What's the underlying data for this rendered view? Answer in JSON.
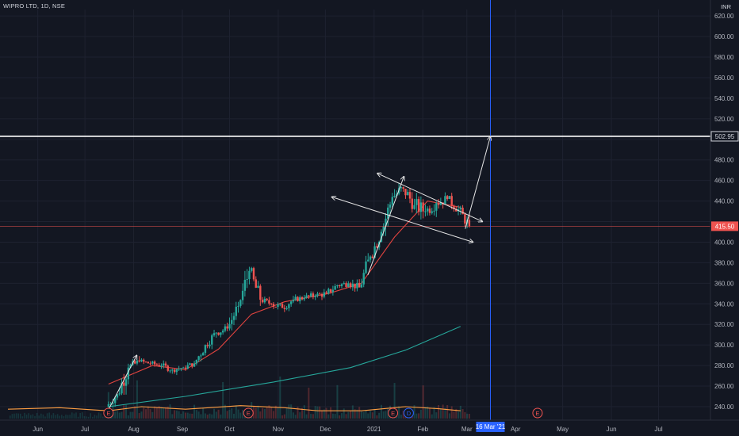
{
  "header": {
    "title": "WIPRO LTD, 1D, NSE",
    "currency": "INR"
  },
  "colors": {
    "background": "#131722",
    "grid": "#1e2230",
    "up": "#26a69a",
    "down": "#ef5350",
    "sma_short": "#e0433f",
    "sma_long": "#26a69a",
    "volume_ma": "#ff9f43",
    "crosshair": "#2962ff",
    "resistance": "#ffffff",
    "price_line": "#ef5350"
  },
  "price_scale": {
    "labels": [
      "620.00",
      "600.00",
      "580.00",
      "560.00",
      "540.00",
      "520.00",
      "480.00",
      "460.00",
      "440.00",
      "400.00",
      "380.00",
      "360.00",
      "340.00",
      "320.00",
      "300.00",
      "280.00",
      "260.00",
      "240.00"
    ]
  },
  "time_scale": {
    "labels": [
      "Jun",
      "Jul",
      "Aug",
      "Sep",
      "Oct",
      "Nov",
      "Dec",
      "2021",
      "Feb",
      "Mar",
      "Apr",
      "May",
      "Jun",
      "Jul"
    ]
  },
  "price_tags": {
    "resistance": "502.95",
    "last_price": "415.50",
    "crosshair_date": "16 Mar '21"
  },
  "event_badges": [
    {
      "label": "E",
      "kind": "earnings"
    },
    {
      "label": "E",
      "kind": "earnings"
    },
    {
      "label": "E",
      "kind": "earnings"
    },
    {
      "label": "D",
      "kind": "dividend"
    },
    {
      "label": "E",
      "kind": "earnings"
    }
  ],
  "chart_data": {
    "type": "candlestick",
    "title": "WIPRO LTD, 1D, NSE",
    "currency": "INR",
    "ylim": [
      230,
      630
    ],
    "x_range": [
      "2020-05-13",
      "2021-07-31"
    ],
    "candles_weekly_approx": [
      {
        "date": "2020-07-16",
        "open": 240,
        "high": 255,
        "low": 236,
        "close": 252
      },
      {
        "date": "2020-07-23",
        "open": 252,
        "high": 286,
        "low": 250,
        "close": 278
      },
      {
        "date": "2020-07-30",
        "open": 278,
        "high": 292,
        "low": 274,
        "close": 284
      },
      {
        "date": "2020-08-06",
        "open": 284,
        "high": 290,
        "low": 278,
        "close": 282
      },
      {
        "date": "2020-08-13",
        "open": 282,
        "high": 287,
        "low": 276,
        "close": 280
      },
      {
        "date": "2020-08-20",
        "open": 280,
        "high": 285,
        "low": 272,
        "close": 276
      },
      {
        "date": "2020-08-27",
        "open": 276,
        "high": 282,
        "low": 270,
        "close": 278
      },
      {
        "date": "2020-09-03",
        "open": 278,
        "high": 286,
        "low": 274,
        "close": 282
      },
      {
        "date": "2020-09-10",
        "open": 282,
        "high": 305,
        "low": 280,
        "close": 300
      },
      {
        "date": "2020-09-17",
        "open": 300,
        "high": 316,
        "low": 296,
        "close": 312
      },
      {
        "date": "2020-09-24",
        "open": 312,
        "high": 322,
        "low": 306,
        "close": 316
      },
      {
        "date": "2020-10-01",
        "open": 316,
        "high": 342,
        "low": 314,
        "close": 338
      },
      {
        "date": "2020-10-08",
        "open": 338,
        "high": 380,
        "low": 336,
        "close": 372
      },
      {
        "date": "2020-10-15",
        "open": 372,
        "high": 376,
        "low": 338,
        "close": 344
      },
      {
        "date": "2020-10-22",
        "open": 344,
        "high": 350,
        "low": 336,
        "close": 340
      },
      {
        "date": "2020-10-29",
        "open": 340,
        "high": 348,
        "low": 330,
        "close": 336
      },
      {
        "date": "2020-11-05",
        "open": 336,
        "high": 348,
        "low": 332,
        "close": 344
      },
      {
        "date": "2020-11-12",
        "open": 344,
        "high": 352,
        "low": 340,
        "close": 346
      },
      {
        "date": "2020-11-19",
        "open": 346,
        "high": 354,
        "low": 340,
        "close": 348
      },
      {
        "date": "2020-11-26",
        "open": 348,
        "high": 356,
        "low": 342,
        "close": 350
      },
      {
        "date": "2020-12-03",
        "open": 350,
        "high": 362,
        "low": 346,
        "close": 358
      },
      {
        "date": "2020-12-10",
        "open": 358,
        "high": 366,
        "low": 352,
        "close": 360
      },
      {
        "date": "2020-12-17",
        "open": 360,
        "high": 366,
        "low": 350,
        "close": 356
      },
      {
        "date": "2020-12-24",
        "open": 356,
        "high": 390,
        "low": 354,
        "close": 386
      },
      {
        "date": "2020-12-31",
        "open": 386,
        "high": 414,
        "low": 384,
        "close": 410
      },
      {
        "date": "2021-01-07",
        "open": 410,
        "high": 448,
        "low": 406,
        "close": 444
      },
      {
        "date": "2021-01-14",
        "open": 444,
        "high": 468,
        "low": 438,
        "close": 452
      },
      {
        "date": "2021-01-21",
        "open": 452,
        "high": 458,
        "low": 426,
        "close": 436
      },
      {
        "date": "2021-01-28",
        "open": 436,
        "high": 448,
        "low": 414,
        "close": 430
      },
      {
        "date": "2021-02-04",
        "open": 430,
        "high": 446,
        "low": 420,
        "close": 438
      },
      {
        "date": "2021-02-11",
        "open": 438,
        "high": 452,
        "low": 430,
        "close": 442
      },
      {
        "date": "2021-02-18",
        "open": 442,
        "high": 448,
        "low": 426,
        "close": 432
      },
      {
        "date": "2021-02-25",
        "open": 432,
        "high": 436,
        "low": 412,
        "close": 415.5
      }
    ],
    "sma_short": [
      [
        "2020-07-16",
        262
      ],
      [
        "2020-08-13",
        280
      ],
      [
        "2020-09-03",
        276
      ],
      [
        "2020-09-24",
        296
      ],
      [
        "2020-10-15",
        330
      ],
      [
        "2020-11-05",
        342
      ],
      [
        "2020-12-03",
        350
      ],
      [
        "2020-12-24",
        360
      ],
      [
        "2021-01-14",
        405
      ],
      [
        "2021-02-04",
        440
      ],
      [
        "2021-02-25",
        434
      ]
    ],
    "sma_long": [
      [
        "2020-07-16",
        240
      ],
      [
        "2020-09-03",
        250
      ],
      [
        "2020-10-29",
        264
      ],
      [
        "2020-12-17",
        278
      ],
      [
        "2021-01-21",
        295
      ],
      [
        "2021-02-25",
        318
      ]
    ],
    "volume_ma": [
      [
        "2020-05-13",
        237.5
      ],
      [
        "2020-06-15",
        239
      ],
      [
        "2020-07-16",
        236
      ],
      [
        "2020-08-06",
        240
      ],
      [
        "2020-09-03",
        237.5
      ],
      [
        "2020-10-08",
        241
      ],
      [
        "2020-11-05",
        239
      ],
      [
        "2020-11-26",
        236
      ],
      [
        "2020-12-24",
        236
      ],
      [
        "2021-01-21",
        240
      ],
      [
        "2021-02-11",
        238
      ],
      [
        "2021-02-25",
        236
      ]
    ],
    "drawings": {
      "horizontal_resistance": 502.95,
      "last_price_line": 415.5,
      "crosshair_date": "2021-03-16",
      "channel_upper": [
        [
          "2021-01-03",
          467
        ],
        [
          "2021-03-11",
          420
        ]
      ],
      "channel_lower": [
        [
          "2020-12-05",
          444
        ],
        [
          "2021-03-05",
          400
        ]
      ],
      "impulse_arrows": [
        [
          [
            "2020-07-16",
            237
          ],
          [
            "2020-08-03",
            290
          ]
        ],
        [
          [
            "2020-12-28",
            368
          ],
          [
            "2021-01-20",
            464
          ]
        ],
        [
          [
            "2021-02-28",
            413
          ],
          [
            "2021-03-16",
            502.95
          ]
        ]
      ]
    }
  }
}
